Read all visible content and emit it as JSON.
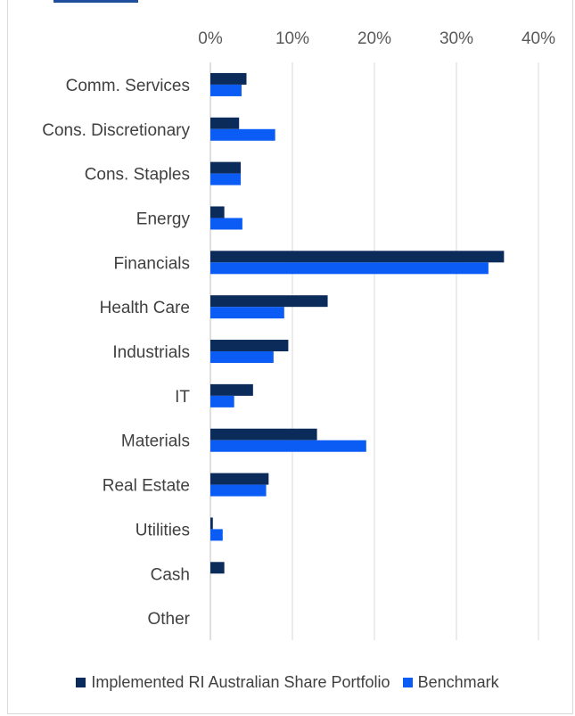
{
  "chart_data": {
    "type": "bar",
    "orientation": "horizontal",
    "categories": [
      "Comm. Services",
      "Cons. Discretionary",
      "Cons. Staples",
      "Energy",
      "Financials",
      "Health Care",
      "Industrials",
      "IT",
      "Materials",
      "Real Estate",
      "Utilities",
      "Cash",
      "Other"
    ],
    "series": [
      {
        "name": "Implemented RI Australian Share Portfolio",
        "color": "#0b2b5b",
        "values": [
          4.4,
          3.5,
          3.7,
          1.7,
          35.8,
          14.3,
          9.5,
          5.2,
          13.0,
          7.1,
          0.3,
          1.7,
          0
        ]
      },
      {
        "name": "Benchmark",
        "color": "#0a5cf5",
        "values": [
          3.8,
          7.9,
          3.7,
          3.9,
          33.9,
          9.0,
          7.7,
          2.9,
          19.0,
          6.8,
          1.5,
          0,
          0
        ]
      }
    ],
    "x_ticks": [
      "0%",
      "10%",
      "20%",
      "30%",
      "40%"
    ],
    "xlim": [
      0,
      40
    ],
    "grid": true,
    "axis_position": "top",
    "legend_position": "bottom"
  }
}
